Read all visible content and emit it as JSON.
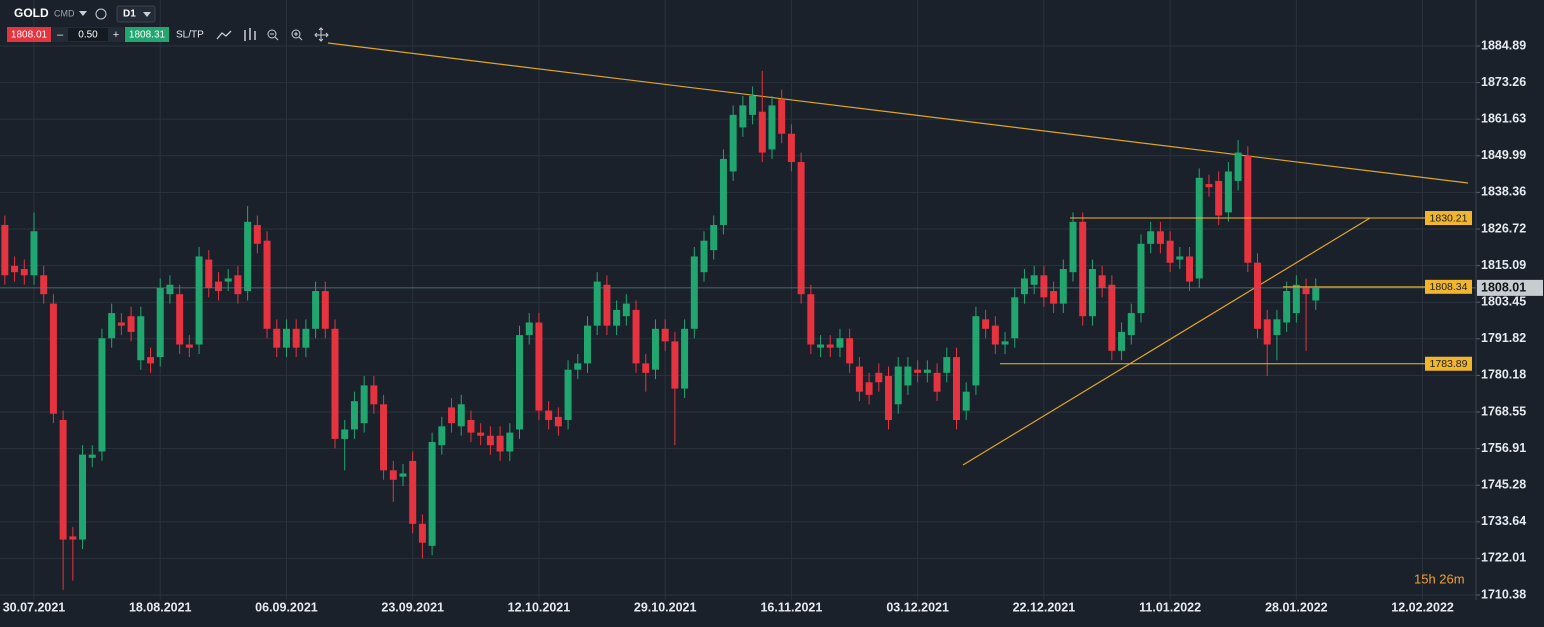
{
  "toolbar": {
    "symbol": "GOLD",
    "kind": "CMD",
    "timeframe": "D1",
    "sell": "1808.01",
    "minus": "–",
    "volume": "0.50",
    "plus": "+",
    "buy": "1808.31",
    "sltp": "SL/TP"
  },
  "timer": "15h 26m",
  "chart_data": {
    "type": "candlestick",
    "categories": [
      null,
      null,
      null,
      "30.07.2021",
      null,
      null,
      null,
      null,
      null,
      null,
      null,
      null,
      null,
      null,
      null,
      null,
      "18.08.2021",
      null,
      null,
      null,
      null,
      null,
      null,
      null,
      null,
      null,
      null,
      null,
      null,
      "06.09.2021",
      null,
      null,
      null,
      null,
      null,
      null,
      null,
      null,
      null,
      null,
      null,
      null,
      "23.09.2021",
      null,
      null,
      null,
      null,
      null,
      null,
      null,
      null,
      null,
      null,
      null,
      null,
      "12.10.2021",
      null,
      null,
      null,
      null,
      null,
      null,
      null,
      null,
      null,
      null,
      null,
      null,
      "29.10.2021",
      null,
      null,
      null,
      null,
      null,
      null,
      null,
      null,
      null,
      null,
      null,
      null,
      "16.11.2021",
      null,
      null,
      null,
      null,
      null,
      null,
      null,
      null,
      null,
      null,
      null,
      null,
      "03.12.2021",
      null,
      null,
      null,
      null,
      null,
      null,
      null,
      null,
      null,
      null,
      null,
      null,
      "22.12.2021",
      null,
      null,
      null,
      null,
      null,
      null,
      null,
      null,
      null,
      null,
      null,
      null,
      "11.01.2022",
      null,
      null,
      null,
      null,
      null,
      null,
      null,
      null,
      null,
      null,
      null,
      null,
      "28.01.2022",
      null,
      null,
      null,
      null,
      null,
      null,
      null,
      null,
      null,
      null,
      null,
      null,
      "12.02.2022",
      null,
      null,
      null,
      null,
      null
    ],
    "open": [
      1828,
      1815,
      1814,
      1812,
      1812,
      1803,
      1766,
      1729,
      1728,
      1754,
      1756,
      1792,
      1797,
      1799,
      1785,
      1786,
      1786,
      1806,
      1806,
      1790,
      1790,
      1817,
      1810,
      1810,
      1812,
      1807,
      1828,
      1823,
      1795,
      1789,
      1795,
      1789,
      1795,
      1807,
      1795,
      1760,
      1763,
      1765,
      1777,
      1771,
      1750,
      1748,
      1753,
      1733,
      1726,
      1758,
      1770,
      1764,
      1766,
      1762,
      1761,
      1761,
      1756,
      1763,
      1793,
      1797,
      1769,
      1767,
      1766,
      1782,
      1784,
      1796,
      1809,
      1796,
      1799,
      1801,
      1784,
      1782,
      1795,
      1791,
      1776,
      1795,
      1813,
      1820,
      1828,
      1845,
      1859,
      1863,
      1864,
      1852,
      1868,
      1857,
      1848,
      1806,
      1789,
      1790,
      1789,
      1792,
      1783,
      1778,
      1781,
      1780,
      1771,
      1777,
      1782,
      1781,
      1781,
      1781,
      1786,
      1769,
      1777,
      1798,
      1796,
      1790,
      1792,
      1806,
      1809,
      1812,
      1807,
      1803,
      1813,
      1829,
      1799,
      1812,
      1809,
      1788,
      1793,
      1800,
      1822,
      1826,
      1823,
      1817,
      1818,
      1811,
      1841,
      1842,
      1832,
      1842,
      1850,
      1816,
      1798,
      1793,
      1797,
      1800,
      1808,
      1804,
      null,
      null,
      null,
      null,
      null,
      null,
      null,
      null,
      null,
      null,
      null,
      null,
      null,
      null,
      null,
      null
    ],
    "high": [
      1831,
      1818,
      1817,
      1832,
      1815,
      1806,
      1769,
      1732,
      1758,
      1758,
      1795,
      1803,
      1800,
      1802,
      1802,
      1789,
      1811,
      1812,
      1809,
      1793,
      1821,
      1820,
      1813,
      1814,
      1815,
      1834,
      1831,
      1826,
      1798,
      1798,
      1798,
      1798,
      1810,
      1810,
      1798,
      1766,
      1775,
      1780,
      1780,
      1774,
      1753,
      1752,
      1756,
      1736,
      1762,
      1767,
      1773,
      1774,
      1769,
      1765,
      1764,
      1764,
      1765,
      1796,
      1800,
      1800,
      1772,
      1770,
      1785,
      1787,
      1799,
      1813,
      1812,
      1804,
      1806,
      1804,
      1787,
      1798,
      1798,
      1794,
      1798,
      1821,
      1826,
      1831,
      1852,
      1866,
      1869,
      1872,
      1877,
      1869,
      1871,
      1860,
      1851,
      1809,
      1793,
      1793,
      1795,
      1795,
      1786,
      1781,
      1784,
      1783,
      1786,
      1786,
      1785,
      1785,
      1784,
      1789,
      1789,
      1778,
      1802,
      1801,
      1799,
      1794,
      1808,
      1814,
      1815,
      1815,
      1810,
      1817,
      1832,
      1832,
      1817,
      1815,
      1812,
      1797,
      1803,
      1825,
      1829,
      1829,
      1826,
      1821,
      1821,
      1846,
      1844,
      1845,
      1848,
      1855,
      1853,
      1819,
      1801,
      1801,
      1810,
      1812,
      1811,
      1811,
      null,
      null,
      null,
      null,
      null,
      null,
      null,
      null,
      null,
      null,
      null,
      null,
      null,
      null,
      null,
      null
    ],
    "low": [
      1809,
      1810,
      1809,
      1809,
      1803,
      1765,
      1712,
      1715,
      1725,
      1751,
      1753,
      1789,
      1793,
      1791,
      1782,
      1781,
      1783,
      1803,
      1787,
      1786,
      1787,
      1805,
      1804,
      1807,
      1803,
      1804,
      1819,
      1792,
      1786,
      1786,
      1786,
      1786,
      1792,
      1792,
      1757,
      1750,
      1760,
      1762,
      1768,
      1747,
      1740,
      1745,
      1730,
      1722,
      1723,
      1755,
      1762,
      1761,
      1759,
      1758,
      1755,
      1753,
      1753,
      1760,
      1790,
      1766,
      1763,
      1761,
      1763,
      1779,
      1781,
      1793,
      1793,
      1793,
      1796,
      1781,
      1775,
      1779,
      1788,
      1758,
      1773,
      1792,
      1810,
      1817,
      1825,
      1842,
      1856,
      1860,
      1848,
      1849,
      1854,
      1845,
      1803,
      1787,
      1786,
      1786,
      1786,
      1781,
      1772,
      1771,
      1775,
      1763,
      1768,
      1774,
      1778,
      1778,
      1772,
      1778,
      1763,
      1766,
      1774,
      1792,
      1787,
      1787,
      1789,
      1803,
      1806,
      1802,
      1800,
      1800,
      1810,
      1796,
      1796,
      1805,
      1785,
      1785,
      1790,
      1797,
      1819,
      1819,
      1813,
      1814,
      1807,
      1808,
      1837,
      1828,
      1829,
      1839,
      1813,
      1792,
      1780,
      1785,
      1794,
      1797,
      1788,
      1801,
      null,
      null,
      null,
      null,
      null,
      null,
      null,
      null,
      null,
      null,
      null,
      null,
      null,
      null,
      null,
      null
    ],
    "close": [
      1812,
      1813,
      1812,
      1826,
      1806,
      1768,
      1728,
      1728,
      1755,
      1755,
      1792,
      1800,
      1796,
      1794,
      1799,
      1784,
      1808,
      1809,
      1790,
      1789,
      1818,
      1808,
      1807,
      1811,
      1806,
      1829,
      1822,
      1795,
      1789,
      1795,
      1789,
      1795,
      1807,
      1795,
      1760,
      1763,
      1772,
      1777,
      1771,
      1750,
      1747,
      1749,
      1733,
      1727,
      1759,
      1764,
      1765,
      1771,
      1762,
      1761,
      1758,
      1756,
      1762,
      1793,
      1797,
      1769,
      1766,
      1764,
      1782,
      1784,
      1796,
      1810,
      1796,
      1801,
      1803,
      1784,
      1781,
      1795,
      1791,
      1776,
      1795,
      1818,
      1823,
      1828,
      1849,
      1863,
      1866,
      1869,
      1851,
      1866,
      1857,
      1848,
      1806,
      1790,
      1790,
      1789,
      1792,
      1784,
      1775,
      1774,
      1778,
      1766,
      1783,
      1783,
      1781,
      1782,
      1775,
      1786,
      1766,
      1775,
      1799,
      1795,
      1790,
      1791,
      1805,
      1811,
      1812,
      1805,
      1803,
      1814,
      1829,
      1799,
      1814,
      1808,
      1788,
      1794,
      1800,
      1822,
      1826,
      1822,
      1816,
      1818,
      1810,
      1843,
      1840,
      1831,
      1845,
      1851,
      1816,
      1795,
      1790,
      1798,
      1807,
      1809,
      1806,
      1808,
      null,
      null,
      null,
      null,
      null,
      null,
      null,
      null,
      null,
      null,
      null,
      null,
      null,
      null,
      null,
      null
    ],
    "up_color": "#21a670",
    "down_color": "#e5343f",
    "ylim": [
      1708.79,
      1899.51
    ],
    "yticks": [
      1884.89,
      1873.26,
      1861.63,
      1849.99,
      1838.36,
      1826.72,
      1815.09,
      1803.45,
      1791.82,
      1780.18,
      1768.55,
      1756.91,
      1745.28,
      1733.64,
      1722.01,
      1710.38
    ],
    "grid": true,
    "current_price": 1808.01,
    "levels": [
      1830.21,
      1808.34,
      1783.89
    ],
    "level_color": "#f2b52b"
  }
}
